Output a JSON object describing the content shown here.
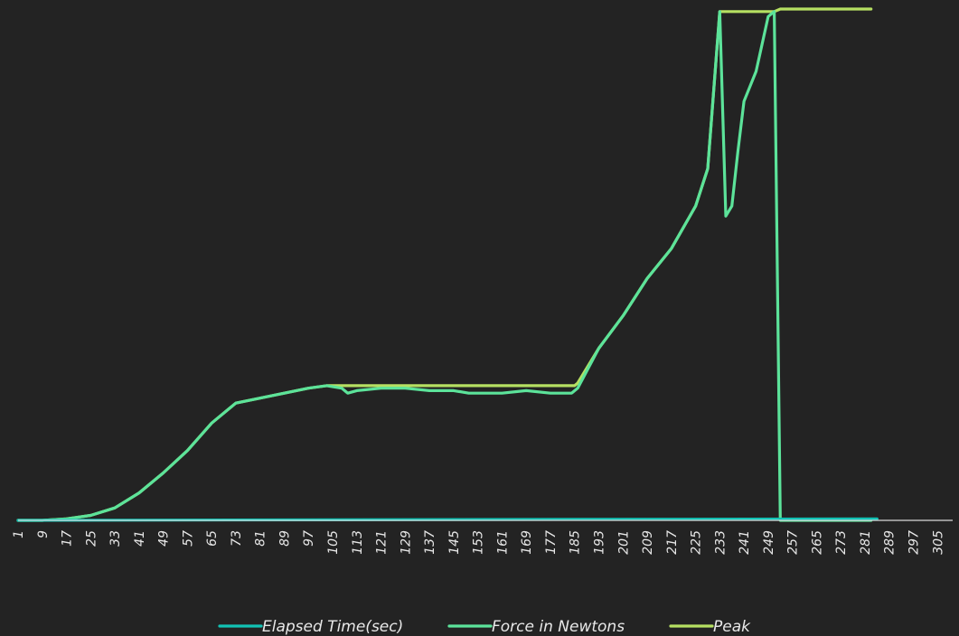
{
  "chart_data": {
    "type": "line",
    "title": "",
    "xlabel": "",
    "ylabel": "",
    "background": "#232323",
    "grid": false,
    "legend_position": "bottom",
    "x_range": [
      1,
      310
    ],
    "y_range": [
      0,
      100
    ],
    "x_tick_labels": [
      "1",
      "9",
      "17",
      "25",
      "33",
      "41",
      "49",
      "57",
      "65",
      "73",
      "81",
      "89",
      "97",
      "105",
      "113",
      "121",
      "129",
      "137",
      "145",
      "153",
      "161",
      "169",
      "177",
      "185",
      "193",
      "201",
      "209",
      "217",
      "225",
      "233",
      "241",
      "249",
      "257",
      "265",
      "273",
      "281",
      "289",
      "297",
      "305"
    ],
    "series": [
      {
        "name": "Elapsed Time(sec)",
        "color": "#12c2b4",
        "points": [
          [
            1,
            0
          ],
          [
            285,
            0.3
          ]
        ]
      },
      {
        "name": "Force in Newtons",
        "color": "#5ce39a",
        "points": [
          [
            1,
            0
          ],
          [
            9,
            0
          ],
          [
            17,
            0.3
          ],
          [
            25,
            1
          ],
          [
            33,
            2.5
          ],
          [
            41,
            5.5
          ],
          [
            49,
            9.5
          ],
          [
            57,
            14
          ],
          [
            65,
            19.5
          ],
          [
            73,
            23.5
          ],
          [
            81,
            24.5
          ],
          [
            89,
            25.5
          ],
          [
            97,
            26.5
          ],
          [
            103,
            27
          ],
          [
            108,
            26.5
          ],
          [
            110,
            25.5
          ],
          [
            113,
            26
          ],
          [
            121,
            26.5
          ],
          [
            129,
            26.5
          ],
          [
            137,
            26
          ],
          [
            145,
            26
          ],
          [
            150,
            25.5
          ],
          [
            153,
            25.5
          ],
          [
            161,
            25.5
          ],
          [
            169,
            26
          ],
          [
            177,
            25.5
          ],
          [
            184,
            25.5
          ],
          [
            186,
            26.5
          ],
          [
            193,
            34.5
          ],
          [
            201,
            41
          ],
          [
            209,
            48.5
          ],
          [
            217,
            54.5
          ],
          [
            225,
            63
          ],
          [
            229,
            70.5
          ],
          [
            233,
            102
          ],
          [
            235,
            61
          ],
          [
            237,
            63
          ],
          [
            239,
            74
          ],
          [
            241,
            84
          ],
          [
            245,
            90
          ],
          [
            249,
            101
          ],
          [
            251,
            102
          ],
          [
            253,
            0
          ],
          [
            283,
            0
          ]
        ]
      },
      {
        "name": "Peak",
        "color": "#b6e062",
        "points": [
          [
            1,
            0
          ],
          [
            9,
            0
          ],
          [
            17,
            0.3
          ],
          [
            25,
            1
          ],
          [
            33,
            2.5
          ],
          [
            41,
            5.5
          ],
          [
            49,
            9.5
          ],
          [
            57,
            14
          ],
          [
            65,
            19.5
          ],
          [
            73,
            23.5
          ],
          [
            81,
            24.5
          ],
          [
            89,
            25.5
          ],
          [
            97,
            26.5
          ],
          [
            103,
            27
          ],
          [
            185,
            27
          ],
          [
            186,
            27.5
          ],
          [
            193,
            34.5
          ],
          [
            201,
            41
          ],
          [
            209,
            48.5
          ],
          [
            217,
            54.5
          ],
          [
            225,
            63
          ],
          [
            229,
            70.5
          ],
          [
            233,
            102
          ],
          [
            251,
            102
          ],
          [
            253,
            102.5
          ],
          [
            283,
            102.5
          ]
        ]
      }
    ]
  }
}
